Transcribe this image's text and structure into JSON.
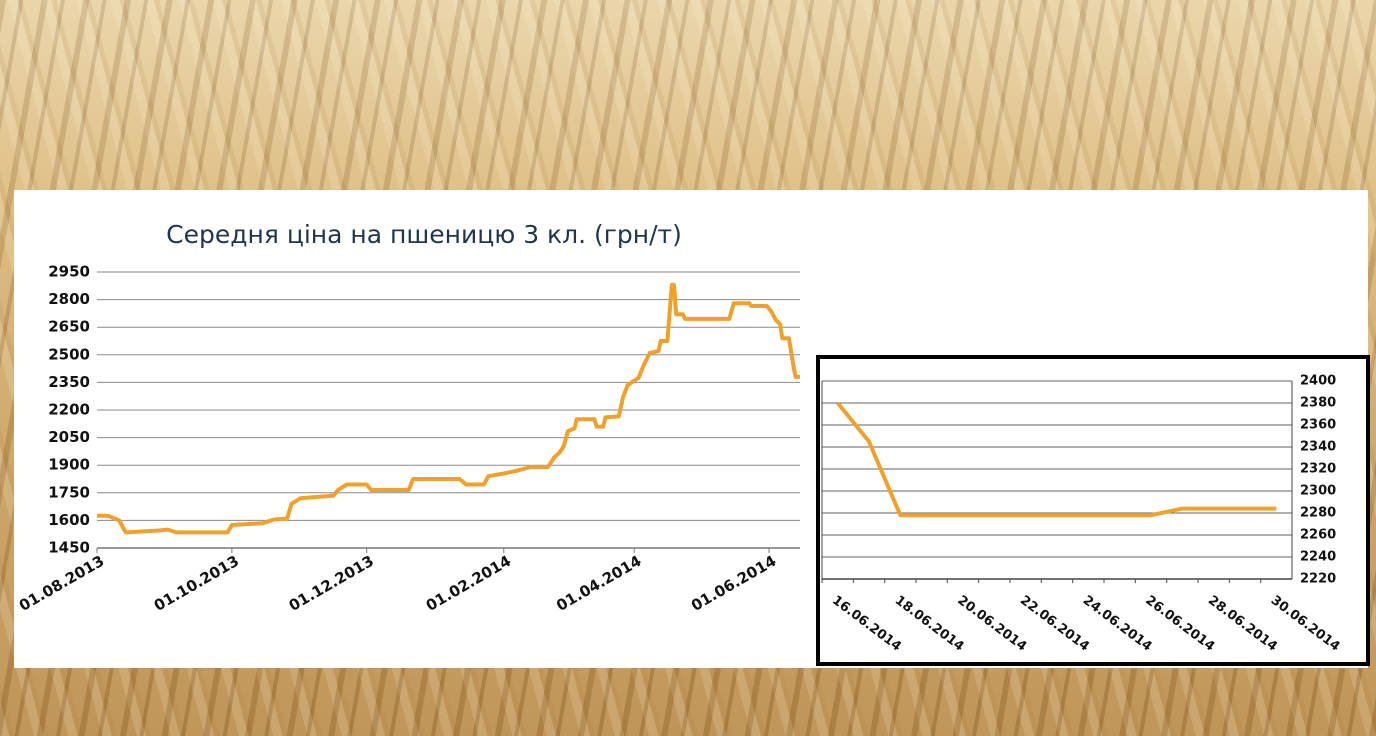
{
  "chart_data": [
    {
      "type": "line",
      "title": "Середня ціна на пшеницю 3 кл. (грн/т)",
      "x": [
        "01.08.2013",
        "06.08.2013",
        "11.08.2013",
        "14.08.2013",
        "29.08.2013",
        "02.09.2013",
        "06.09.2013",
        "29.09.2013",
        "01.10.2013",
        "15.10.2013",
        "20.10.2013",
        "26.10.2013",
        "28.10.2013",
        "01.11.2013",
        "11.11.2013",
        "16.11.2013",
        "18.11.2013",
        "22.11.2013",
        "01.12.2013",
        "03.12.2013",
        "20.12.2013",
        "22.12.2013",
        "12.01.2014",
        "15.01.2014",
        "23.01.2014",
        "25.01.2014",
        "01.02.2014",
        "07.02.2014",
        "13.02.2014",
        "21.02.2014",
        "24.02.2014",
        "26.02.2014",
        "28.02.2014",
        "02.03.2014",
        "05.03.2014",
        "06.03.2014",
        "14.03.2014",
        "15.03.2014",
        "18.03.2014",
        "19.03.2014",
        "25.03.2014",
        "27.03.2014",
        "29.03.2014",
        "03.04.2014",
        "05.04.2014",
        "08.04.2014",
        "12.04.2014",
        "13.04.2014",
        "16.04.2014",
        "18.04.2014",
        "19.04.2014",
        "20.04.2014",
        "23.04.2014",
        "24.04.2014",
        "14.05.2014",
        "16.05.2014",
        "23.05.2014",
        "24.05.2014",
        "31.05.2014",
        "02.06.2014",
        "04.06.2014",
        "06.06.2014",
        "07.06.2014",
        "10.06.2014",
        "12.06.2014",
        "13.06.2014",
        "15.06.2014"
      ],
      "series": [
        {
          "color": "#f0a02c",
          "values": [
            1625,
            1625,
            1600,
            1535,
            1545,
            1550,
            1535,
            1535,
            1575,
            1585,
            1605,
            1610,
            1690,
            1720,
            1730,
            1735,
            1765,
            1795,
            1795,
            1765,
            1765,
            1825,
            1825,
            1795,
            1795,
            1840,
            1855,
            1870,
            1890,
            1890,
            1945,
            1965,
            2000,
            2085,
            2100,
            2150,
            2150,
            2110,
            2110,
            2160,
            2165,
            2270,
            2335,
            2375,
            2435,
            2510,
            2520,
            2575,
            2575,
            2880,
            2880,
            2720,
            2720,
            2695,
            2695,
            2780,
            2780,
            2765,
            2765,
            2735,
            2690,
            2665,
            2590,
            2590,
            2440,
            2380,
            2380
          ]
        }
      ],
      "xlim": [
        "01.08.2013",
        "15.06.2014"
      ],
      "xticks": [
        "01.08.2013",
        "01.10.2013",
        "01.12.2013",
        "01.02.2014",
        "01.04.2014",
        "01.06.2014"
      ],
      "ylim": [
        1450,
        2950
      ],
      "yticks": [
        1450,
        1600,
        1750,
        1900,
        2050,
        2200,
        2350,
        2500,
        2650,
        2800,
        2950
      ],
      "grid": true
    },
    {
      "type": "line",
      "categories": [
        "16.06.2014",
        null,
        "18.06.2014",
        null,
        "20.06.2014",
        null,
        "22.06.2014",
        null,
        "24.06.2014",
        null,
        "26.06.2014",
        null,
        "28.06.2014",
        null,
        "30.06.2014"
      ],
      "series": [
        {
          "color": "#f0a02c",
          "values": [
            2380,
            2345,
            2278,
            2278,
            2278,
            2278,
            2278,
            2278,
            2278,
            2278,
            2278,
            2284,
            2284,
            2284,
            2284
          ]
        }
      ],
      "ylim": [
        2220,
        2400
      ],
      "yticks": [
        2220,
        2240,
        2260,
        2280,
        2300,
        2320,
        2340,
        2360,
        2380,
        2400
      ],
      "grid": true,
      "y_axis_side": "right"
    }
  ]
}
